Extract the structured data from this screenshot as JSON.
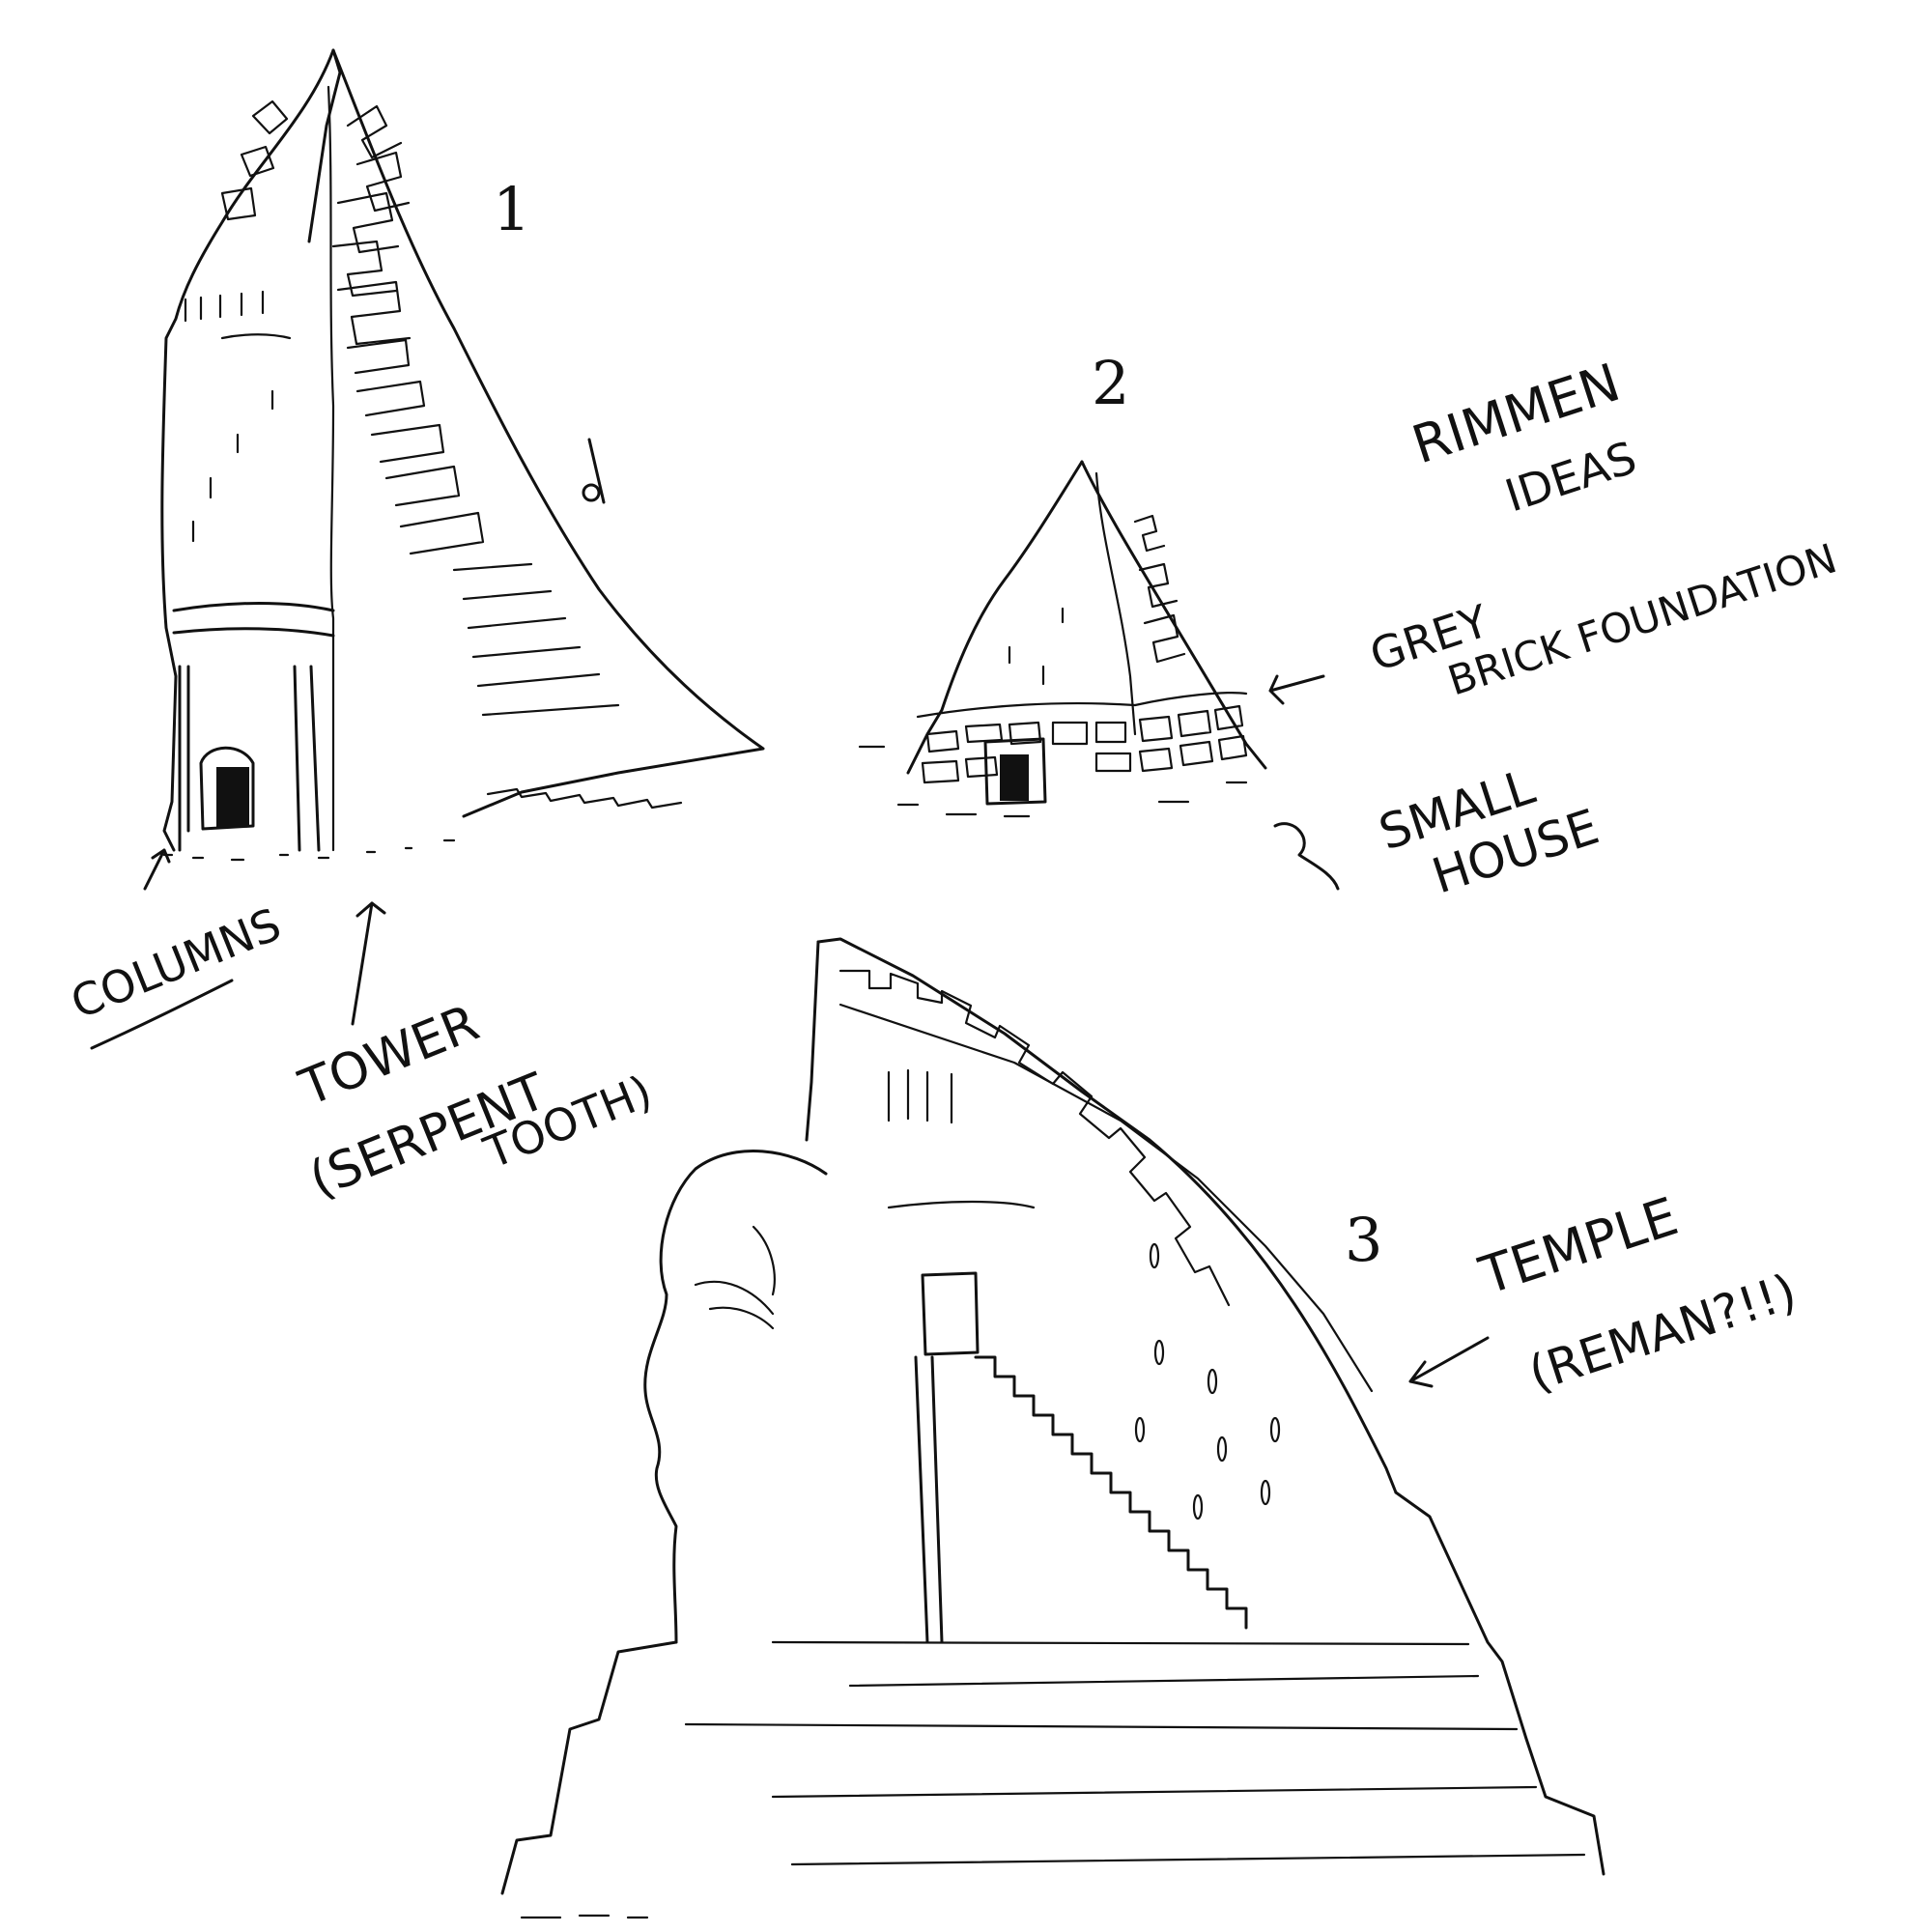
{
  "labels": {
    "number_1": "1",
    "number_2": "2",
    "number_3": "3",
    "title_line1": "RIMMEN",
    "title_line2": "IDEAS",
    "grey": "GREY",
    "brick_foundation": "BRICK FOUNDATION",
    "small": "SMALL",
    "house": "HOUSE",
    "columns": "COLUMNS",
    "tower": "TOWER",
    "serpent": "(SERPENT",
    "tooth": "TOOTH)",
    "temple": "TEMPLE",
    "reman": "(REMAN?!!)"
  },
  "colors": {
    "ink": "#111111",
    "paper": "#ffffff"
  }
}
